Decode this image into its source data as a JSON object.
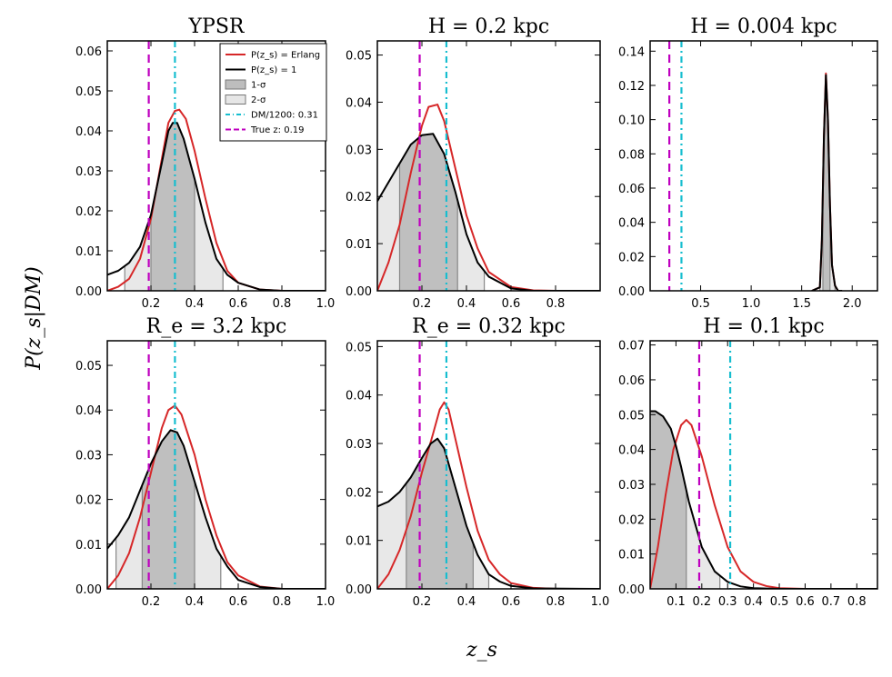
{
  "figure": {
    "ylabel": "P(z_s|DM)",
    "xlabel": "z_s"
  },
  "legend": {
    "entries": [
      {
        "label": "P(z_s) = Erlang",
        "color": "#d62728",
        "kind": "line"
      },
      {
        "label": "P(z_s) = 1",
        "color": "#000000",
        "kind": "line"
      },
      {
        "label": "1-σ",
        "color": "#bdbdbd",
        "kind": "patch"
      },
      {
        "label": "2-σ",
        "color": "#e6e6e6",
        "kind": "patch"
      },
      {
        "label": "DM/1200: 0.31",
        "color": "#17becf",
        "kind": "dashdot"
      },
      {
        "label": "True z: 0.19",
        "color": "#bf00bf",
        "kind": "dashed"
      }
    ]
  },
  "chart_data": [
    {
      "type": "line",
      "title": "YPSR",
      "xlim": [
        0,
        1.0
      ],
      "ylim": [
        0,
        0.0625
      ],
      "xticks": [
        0.2,
        0.4,
        0.6,
        0.8,
        1.0
      ],
      "xticklabels": [
        "0.2",
        "0.4",
        "0.6",
        "0.8",
        "1.0"
      ],
      "yticks": [
        0,
        0.01,
        0.02,
        0.03,
        0.04,
        0.05,
        0.06
      ],
      "yticklabels": [
        "0.00",
        "0.01",
        "0.02",
        "0.03",
        "0.04",
        "0.05",
        "0.06"
      ],
      "dm_z": 0.31,
      "true_z": 0.19,
      "sigma1": [
        0.2,
        0.4
      ],
      "sigma2": [
        0.08,
        0.53
      ],
      "series": [
        {
          "name": "P(z_s) = Erlang",
          "color": "#d62728",
          "x": [
            0,
            0.05,
            0.1,
            0.15,
            0.2,
            0.25,
            0.28,
            0.31,
            0.33,
            0.36,
            0.4,
            0.45,
            0.5,
            0.55,
            0.6,
            0.7,
            0.8,
            1.0
          ],
          "y": [
            0.0,
            0.001,
            0.003,
            0.008,
            0.018,
            0.033,
            0.042,
            0.045,
            0.0453,
            0.043,
            0.035,
            0.023,
            0.012,
            0.005,
            0.002,
            0.0003,
            0.0,
            0.0
          ]
        },
        {
          "name": "P(z_s) = 1",
          "color": "#000000",
          "x": [
            0,
            0.05,
            0.1,
            0.15,
            0.2,
            0.25,
            0.28,
            0.3,
            0.32,
            0.35,
            0.4,
            0.45,
            0.5,
            0.55,
            0.6,
            0.7,
            0.8,
            1.0
          ],
          "y": [
            0.004,
            0.005,
            0.007,
            0.011,
            0.019,
            0.032,
            0.04,
            0.042,
            0.042,
            0.038,
            0.028,
            0.017,
            0.008,
            0.004,
            0.002,
            0.0003,
            0.0,
            0.0
          ]
        }
      ]
    },
    {
      "type": "line",
      "title": "H = 0.2 kpc",
      "xlim": [
        0,
        1.0
      ],
      "ylim": [
        0,
        0.053
      ],
      "xticks": [
        0.2,
        0.4,
        0.6,
        0.8
      ],
      "xticklabels": [
        "0.2",
        "0.4",
        "0.6",
        "0.8"
      ],
      "yticks": [
        0,
        0.01,
        0.02,
        0.03,
        0.04,
        0.05
      ],
      "yticklabels": [
        "0.00",
        "0.01",
        "0.02",
        "0.03",
        "0.04",
        "0.05"
      ],
      "dm_z": 0.31,
      "true_z": 0.19,
      "sigma1": [
        0.1,
        0.36
      ],
      "sigma2": [
        0.0,
        0.48
      ],
      "series": [
        {
          "name": "P(z_s) = Erlang",
          "color": "#d62728",
          "x": [
            0,
            0.05,
            0.1,
            0.15,
            0.2,
            0.23,
            0.27,
            0.3,
            0.35,
            0.4,
            0.45,
            0.5,
            0.6,
            0.7,
            0.8,
            1.0
          ],
          "y": [
            0.0,
            0.006,
            0.014,
            0.025,
            0.035,
            0.039,
            0.0395,
            0.036,
            0.026,
            0.016,
            0.009,
            0.004,
            0.0008,
            0.0001,
            0.0,
            0.0
          ]
        },
        {
          "name": "P(z_s) = 1",
          "color": "#000000",
          "x": [
            0,
            0.05,
            0.1,
            0.15,
            0.2,
            0.25,
            0.3,
            0.35,
            0.4,
            0.45,
            0.5,
            0.6,
            0.7,
            1.0
          ],
          "y": [
            0.019,
            0.023,
            0.027,
            0.031,
            0.033,
            0.0333,
            0.029,
            0.021,
            0.012,
            0.006,
            0.003,
            0.0005,
            0.0,
            0.0
          ]
        }
      ]
    },
    {
      "type": "line",
      "title": "H = 0.004 kpc",
      "xlim": [
        0,
        2.25
      ],
      "ylim": [
        0,
        0.146
      ],
      "xticks": [
        0.5,
        1.0,
        1.5,
        2.0
      ],
      "xticklabels": [
        "0.5",
        "1.0",
        "1.5",
        "2.0"
      ],
      "yticks": [
        0,
        0.02,
        0.04,
        0.06,
        0.08,
        0.1,
        0.12,
        0.14
      ],
      "yticklabels": [
        "0.00",
        "0.02",
        "0.04",
        "0.06",
        "0.08",
        "0.10",
        "0.12",
        "0.14"
      ],
      "dm_z": 0.31,
      "true_z": 0.19,
      "sigma1": [
        1.71,
        1.78
      ],
      "sigma2": [
        1.68,
        1.83
      ],
      "series": [
        {
          "name": "P(z_s) = Erlang",
          "color": "#d62728",
          "x": [
            1.6,
            1.68,
            1.7,
            1.72,
            1.74,
            1.76,
            1.78,
            1.8,
            1.83,
            1.86,
            1.9
          ],
          "y": [
            0.0,
            0.002,
            0.03,
            0.09,
            0.127,
            0.1,
            0.05,
            0.015,
            0.003,
            0.0,
            0.0
          ]
        },
        {
          "name": "P(z_s) = 1",
          "color": "#000000",
          "x": [
            1.6,
            1.68,
            1.7,
            1.72,
            1.74,
            1.76,
            1.78,
            1.8,
            1.83,
            1.86,
            1.9
          ],
          "y": [
            0.0,
            0.002,
            0.03,
            0.09,
            0.126,
            0.1,
            0.05,
            0.015,
            0.003,
            0.0,
            0.0
          ]
        }
      ]
    },
    {
      "type": "line",
      "title": "R_e = 3.2 kpc",
      "xlim": [
        0,
        1.0
      ],
      "ylim": [
        0,
        0.0555
      ],
      "xticks": [
        0.2,
        0.4,
        0.6,
        0.8,
        1.0
      ],
      "xticklabels": [
        "0.2",
        "0.4",
        "0.6",
        "0.8",
        "1.0"
      ],
      "yticks": [
        0,
        0.01,
        0.02,
        0.03,
        0.04,
        0.05
      ],
      "yticklabels": [
        "0.00",
        "0.01",
        "0.02",
        "0.03",
        "0.04",
        "0.05"
      ],
      "dm_z": 0.31,
      "true_z": 0.19,
      "sigma1": [
        0.16,
        0.4
      ],
      "sigma2": [
        0.04,
        0.52
      ],
      "series": [
        {
          "name": "P(z_s) = Erlang",
          "color": "#d62728",
          "x": [
            0,
            0.05,
            0.1,
            0.15,
            0.2,
            0.25,
            0.28,
            0.31,
            0.34,
            0.4,
            0.45,
            0.5,
            0.55,
            0.6,
            0.7,
            0.8,
            1.0
          ],
          "y": [
            0.0,
            0.003,
            0.008,
            0.016,
            0.026,
            0.036,
            0.04,
            0.041,
            0.039,
            0.03,
            0.02,
            0.012,
            0.006,
            0.003,
            0.0005,
            0.0,
            0.0
          ]
        },
        {
          "name": "P(z_s) = 1",
          "color": "#000000",
          "x": [
            0,
            0.05,
            0.1,
            0.15,
            0.2,
            0.25,
            0.29,
            0.32,
            0.35,
            0.4,
            0.45,
            0.5,
            0.55,
            0.6,
            0.7,
            0.8,
            1.0
          ],
          "y": [
            0.009,
            0.012,
            0.016,
            0.022,
            0.028,
            0.033,
            0.0355,
            0.035,
            0.032,
            0.024,
            0.016,
            0.009,
            0.005,
            0.002,
            0.0004,
            0.0,
            0.0
          ]
        }
      ]
    },
    {
      "type": "line",
      "title": "R_e = 0.32 kpc",
      "xlim": [
        0,
        1.0
      ],
      "ylim": [
        0,
        0.0512
      ],
      "xticks": [
        0.2,
        0.4,
        0.6,
        0.8,
        1.0
      ],
      "xticklabels": [
        "0.2",
        "0.4",
        "0.6",
        "0.8",
        "1.0"
      ],
      "yticks": [
        0,
        0.01,
        0.02,
        0.03,
        0.04,
        0.05
      ],
      "yticklabels": [
        "0.00",
        "0.01",
        "0.02",
        "0.03",
        "0.04",
        "0.05"
      ],
      "dm_z": 0.31,
      "true_z": 0.19,
      "sigma1": [
        0.13,
        0.43
      ],
      "sigma2": [
        0.0,
        0.5
      ],
      "series": [
        {
          "name": "P(z_s) = Erlang",
          "color": "#d62728",
          "x": [
            0,
            0.05,
            0.1,
            0.15,
            0.2,
            0.25,
            0.28,
            0.3,
            0.32,
            0.35,
            0.4,
            0.45,
            0.5,
            0.55,
            0.6,
            0.7,
            0.8,
            1.0
          ],
          "y": [
            0.0,
            0.003,
            0.008,
            0.015,
            0.024,
            0.032,
            0.037,
            0.0385,
            0.037,
            0.031,
            0.021,
            0.012,
            0.006,
            0.003,
            0.0012,
            0.0002,
            0.0,
            0.0
          ]
        },
        {
          "name": "P(z_s) = 1",
          "color": "#000000",
          "x": [
            0,
            0.05,
            0.1,
            0.15,
            0.2,
            0.24,
            0.27,
            0.3,
            0.35,
            0.4,
            0.45,
            0.5,
            0.55,
            0.6,
            0.7,
            1.0
          ],
          "y": [
            0.017,
            0.018,
            0.02,
            0.023,
            0.027,
            0.03,
            0.031,
            0.029,
            0.021,
            0.013,
            0.007,
            0.003,
            0.0015,
            0.0006,
            0.0001,
            0.0
          ]
        }
      ]
    },
    {
      "type": "line",
      "title": "H = 0.1 kpc",
      "xlim": [
        0,
        0.88
      ],
      "ylim": [
        0,
        0.0712
      ],
      "xticks": [
        0.1,
        0.2,
        0.3,
        0.4,
        0.5,
        0.6,
        0.7,
        0.8
      ],
      "xticklabels": [
        "0.1",
        "0.2",
        "0.3",
        "0.4",
        "0.5",
        "0.6",
        "0.7",
        "0.8"
      ],
      "yticks": [
        0,
        0.01,
        0.02,
        0.03,
        0.04,
        0.05,
        0.06,
        0.07
      ],
      "yticklabels": [
        "0.00",
        "0.01",
        "0.02",
        "0.03",
        "0.04",
        "0.05",
        "0.06",
        "0.07"
      ],
      "dm_z": 0.31,
      "true_z": 0.19,
      "sigma1": [
        0.0,
        0.14
      ],
      "sigma2": [
        0.0,
        0.27
      ],
      "series": [
        {
          "name": "P(z_s) = Erlang",
          "color": "#d62728",
          "x": [
            0,
            0.03,
            0.06,
            0.09,
            0.12,
            0.14,
            0.16,
            0.2,
            0.25,
            0.3,
            0.35,
            0.4,
            0.45,
            0.5,
            0.6,
            0.7,
            0.88
          ],
          "y": [
            0.0,
            0.012,
            0.027,
            0.04,
            0.047,
            0.0485,
            0.047,
            0.038,
            0.024,
            0.012,
            0.005,
            0.002,
            0.0008,
            0.0002,
            0.0,
            0.0,
            0.0
          ]
        },
        {
          "name": "P(z_s) = 1",
          "color": "#000000",
          "x": [
            0,
            0.02,
            0.05,
            0.08,
            0.1,
            0.12,
            0.15,
            0.2,
            0.25,
            0.3,
            0.35,
            0.4,
            0.5,
            0.6,
            0.88
          ],
          "y": [
            0.051,
            0.051,
            0.0495,
            0.046,
            0.041,
            0.035,
            0.025,
            0.012,
            0.005,
            0.002,
            0.0007,
            0.0002,
            0.0,
            0.0,
            0.0
          ]
        }
      ]
    }
  ]
}
